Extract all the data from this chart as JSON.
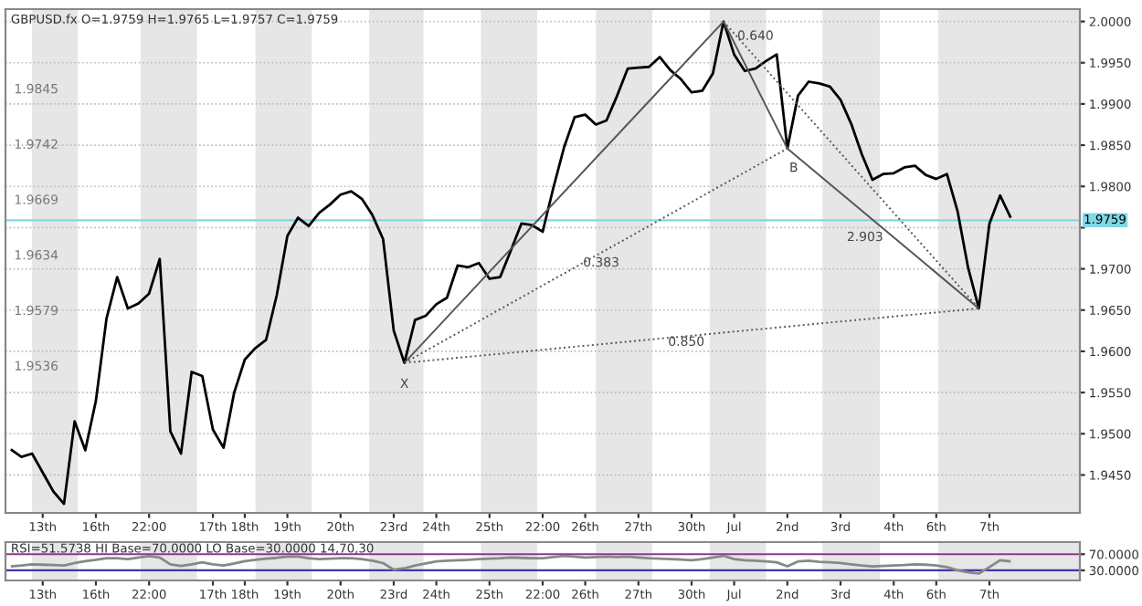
{
  "chart_data": [
    {
      "type": "line",
      "title": "GBPUSD.fx O=1.9759 H=1.9765 L=1.9757 C=1.9759",
      "categories": [
        null,
        null,
        null,
        "13th",
        null,
        null,
        null,
        null,
        "16th",
        null,
        null,
        null,
        null,
        "22:00",
        null,
        null,
        null,
        null,
        null,
        "17th",
        null,
        null,
        "18th",
        null,
        null,
        null,
        "19th",
        null,
        null,
        null,
        null,
        "20th",
        null,
        null,
        null,
        null,
        "23rd",
        null,
        null,
        null,
        "24th",
        null,
        null,
        null,
        null,
        "25th",
        null,
        null,
        null,
        null,
        "22:00",
        null,
        null,
        null,
        "26th",
        null,
        null,
        null,
        null,
        "27th",
        null,
        null,
        null,
        null,
        "30th",
        null,
        null,
        null,
        "Jul",
        null,
        null,
        null,
        null,
        "2nd",
        null,
        null,
        null,
        null,
        "3rd",
        null,
        null,
        null,
        null,
        "4th",
        null,
        null,
        null,
        "6th",
        null,
        null,
        null,
        null,
        "7th",
        null,
        null,
        null,
        null,
        null,
        null,
        null,
        null
      ],
      "series": [
        {
          "color": "#000000",
          "line_style": "solid",
          "values": [
            1.9481,
            1.9472,
            1.9476,
            1.9453,
            1.943,
            1.9415,
            1.9515,
            1.948,
            1.954,
            1.964,
            1.969,
            1.9652,
            1.9658,
            1.967,
            1.9712,
            1.9503,
            1.9476,
            1.9575,
            1.957,
            1.9505,
            1.9483,
            1.955,
            1.959,
            1.9604,
            1.9614,
            1.9668,
            1.974,
            1.9762,
            1.9752,
            1.9768,
            1.9778,
            1.979,
            1.9794,
            1.9785,
            1.9765,
            1.9736,
            1.9625,
            1.9586,
            1.9638,
            1.9643,
            1.9657,
            1.9665,
            1.9704,
            1.9702,
            1.9707,
            1.9688,
            1.969,
            1.9722,
            1.9755,
            1.9753,
            1.9745,
            1.9798,
            1.9847,
            1.9884,
            1.9887,
            1.9875,
            1.988,
            1.991,
            1.9943,
            1.9944,
            1.9945,
            1.9957,
            1.9941,
            1.993,
            1.9914,
            1.9916,
            1.9937,
            2.0,
            1.996,
            1.994,
            1.9943,
            1.9952,
            1.996,
            1.9846,
            1.991,
            1.9927,
            1.9925,
            1.9921,
            1.9905,
            1.9876,
            1.9839,
            1.9808,
            1.9815,
            1.9816,
            1.9823,
            1.9825,
            1.9814,
            1.9809,
            1.9815,
            1.977,
            1.9701,
            1.9652,
            1.9755,
            1.9789,
            1.9762,
            null,
            null,
            null,
            null,
            null,
            null
          ]
        },
        {
          "color": "#555555",
          "line_style": "solid",
          "values": [
            null,
            null,
            null,
            null,
            null,
            null,
            null,
            null,
            null,
            null,
            null,
            null,
            null,
            null,
            null,
            null,
            null,
            null,
            null,
            null,
            null,
            null,
            null,
            null,
            null,
            null,
            null,
            null,
            null,
            null,
            null,
            null,
            null,
            null,
            null,
            null,
            null,
            1.9586,
            null,
            null,
            null,
            null,
            null,
            null,
            null,
            null,
            null,
            null,
            null,
            null,
            null,
            null,
            null,
            null,
            null,
            null,
            null,
            null,
            null,
            null,
            null,
            null,
            null,
            null,
            null,
            null,
            null,
            2.0,
            null,
            null,
            null,
            null,
            null,
            1.9846,
            null,
            null,
            null,
            null,
            null,
            null,
            null,
            null,
            null,
            null,
            null,
            null,
            null,
            null,
            null,
            null,
            null,
            1.9652,
            null,
            null,
            null,
            null,
            null,
            null,
            null,
            null,
            null
          ]
        },
        {
          "color": "#555555",
          "line_style": "dotted",
          "values": [
            null,
            null,
            null,
            null,
            null,
            null,
            null,
            null,
            null,
            null,
            null,
            null,
            null,
            null,
            null,
            null,
            null,
            null,
            null,
            null,
            null,
            null,
            null,
            null,
            null,
            null,
            null,
            null,
            null,
            null,
            null,
            null,
            null,
            null,
            null,
            null,
            null,
            1.9586,
            null,
            null,
            null,
            null,
            null,
            null,
            null,
            null,
            null,
            null,
            null,
            null,
            null,
            null,
            null,
            null,
            null,
            null,
            null,
            null,
            null,
            null,
            null,
            null,
            null,
            null,
            null,
            null,
            null,
            null,
            null,
            null,
            null,
            null,
            null,
            1.9846,
            null,
            null,
            null,
            null,
            null,
            null,
            null,
            null,
            null,
            null,
            null,
            null,
            null,
            null,
            null,
            null,
            null,
            null,
            null,
            null,
            null,
            null,
            null,
            null,
            null,
            null,
            null
          ]
        },
        {
          "color": "#555555",
          "line_style": "dotted",
          "values": [
            null,
            null,
            null,
            null,
            null,
            null,
            null,
            null,
            null,
            null,
            null,
            null,
            null,
            null,
            null,
            null,
            null,
            null,
            null,
            null,
            null,
            null,
            null,
            null,
            null,
            null,
            null,
            null,
            null,
            null,
            null,
            null,
            null,
            null,
            null,
            null,
            null,
            null,
            null,
            null,
            null,
            null,
            null,
            null,
            null,
            null,
            null,
            null,
            null,
            null,
            null,
            null,
            null,
            null,
            null,
            null,
            null,
            null,
            null,
            null,
            null,
            null,
            null,
            null,
            null,
            null,
            null,
            2.0,
            null,
            null,
            null,
            null,
            null,
            null,
            null,
            null,
            null,
            null,
            null,
            null,
            null,
            null,
            null,
            null,
            null,
            null,
            null,
            null,
            null,
            null,
            null,
            1.9652,
            null,
            null,
            null,
            null,
            null,
            null,
            null,
            null,
            null
          ]
        },
        {
          "color": "#555555",
          "line_style": "dotted",
          "values": [
            null,
            null,
            null,
            null,
            null,
            null,
            null,
            null,
            null,
            null,
            null,
            null,
            null,
            null,
            null,
            null,
            null,
            null,
            null,
            null,
            null,
            null,
            null,
            null,
            null,
            null,
            null,
            null,
            null,
            null,
            null,
            null,
            null,
            null,
            null,
            null,
            null,
            1.9586,
            null,
            null,
            null,
            null,
            null,
            null,
            null,
            null,
            null,
            null,
            null,
            null,
            null,
            null,
            null,
            null,
            null,
            null,
            null,
            null,
            null,
            null,
            null,
            null,
            null,
            null,
            null,
            null,
            null,
            null,
            null,
            null,
            null,
            null,
            null,
            null,
            null,
            null,
            null,
            null,
            null,
            null,
            null,
            null,
            null,
            null,
            null,
            null,
            null,
            null,
            null,
            null,
            null,
            1.9652,
            null,
            null,
            null,
            null,
            null,
            null,
            null,
            null,
            null
          ]
        }
      ],
      "ylim": [
        1.9404,
        2.0015
      ],
      "yticks": [
        {
          "value": 1.945,
          "label": "1.9450"
        },
        {
          "value": 1.95,
          "label": "1.9500"
        },
        {
          "value": 1.955,
          "label": "1.9550"
        },
        {
          "value": 1.96,
          "label": "1.9600"
        },
        {
          "value": 1.965,
          "label": "1.9650"
        },
        {
          "value": 1.97,
          "label": "1.9700"
        },
        {
          "value": 1.975,
          "label": null
        },
        {
          "value": 1.98,
          "label": "1.9800"
        },
        {
          "value": 1.985,
          "label": "1.9850"
        },
        {
          "value": 1.99,
          "label": "1.9900"
        },
        {
          "value": 1.995,
          "label": "1.9950"
        },
        {
          "value": 2.0,
          "label": "2.0000"
        }
      ],
      "grid": "y",
      "ref_lines": [
        {
          "axis": "y",
          "value": 1.9759,
          "label": "1.9759",
          "color": "#7fd8e6"
        }
      ],
      "annotations": [
        "0.640",
        "0.383",
        "2.903",
        "0.850",
        "X",
        "B",
        "1.9845",
        "1.9742",
        "1.9669",
        "1.9634",
        "1.9579",
        "1.9536"
      ]
    },
    {
      "type": "line",
      "title": "RSI=51.5738 HI Base=70.0000 LO Base=30.0000 14,70,30",
      "categories": [
        null,
        null,
        null,
        "13th",
        null,
        null,
        null,
        null,
        "16th",
        null,
        null,
        null,
        null,
        "22:00",
        null,
        null,
        null,
        null,
        null,
        "17th",
        null,
        null,
        "18th",
        null,
        null,
        null,
        "19th",
        null,
        null,
        null,
        null,
        "20th",
        null,
        null,
        null,
        null,
        "23rd",
        null,
        null,
        null,
        "24th",
        null,
        null,
        null,
        null,
        "25th",
        null,
        null,
        null,
        null,
        "22:00",
        null,
        null,
        null,
        "26th",
        null,
        null,
        null,
        null,
        "27th",
        null,
        null,
        null,
        null,
        "30th",
        null,
        null,
        null,
        "Jul",
        null,
        null,
        null,
        null,
        "2nd",
        null,
        null,
        null,
        null,
        "3rd",
        null,
        null,
        null,
        null,
        "4th",
        null,
        null,
        null,
        "6th",
        null,
        null,
        null,
        null,
        "7th",
        null,
        null,
        null,
        null,
        null,
        null,
        null,
        null
      ],
      "series": [
        {
          "color": "#888888",
          "line_style": "solid",
          "values": [
            40,
            42,
            45,
            44,
            43,
            42,
            48,
            53,
            56,
            60,
            60,
            58,
            62,
            65,
            62,
            45,
            41,
            45,
            50,
            45,
            42,
            47,
            53,
            56,
            59,
            61,
            64,
            64,
            60,
            58,
            59,
            60,
            60,
            58,
            54,
            48,
            32,
            35,
            42,
            47,
            52,
            54,
            55,
            56,
            58,
            59,
            60,
            62,
            61,
            60,
            60,
            63,
            66,
            64,
            62,
            63,
            64,
            63,
            64,
            62,
            60,
            59,
            58,
            57,
            55,
            58,
            62,
            66,
            58,
            55,
            54,
            52,
            50,
            40,
            52,
            54,
            51,
            50,
            48,
            45,
            42,
            40,
            41,
            42,
            43,
            45,
            44,
            42,
            38,
            30,
            25,
            22,
            38,
            55,
            52,
            null,
            null,
            null,
            null,
            null,
            null
          ]
        }
      ],
      "ylim": [
        5,
        100
      ],
      "yticks": [
        {
          "value": 30,
          "label": "30.0000"
        },
        {
          "value": 70,
          "label": "70.0000"
        }
      ],
      "ref_lines": [
        {
          "axis": "y",
          "value": 70,
          "color": "#8a3a8a"
        },
        {
          "axis": "y",
          "value": 30,
          "color": "#3a3aa8"
        }
      ]
    }
  ]
}
